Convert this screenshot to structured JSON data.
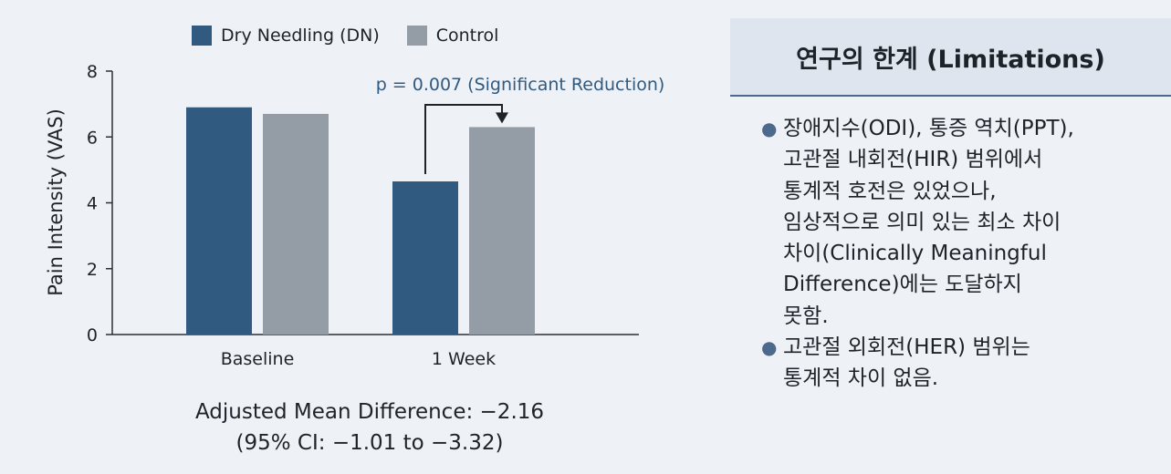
{
  "chart_data": {
    "type": "bar",
    "categories": [
      "Baseline",
      "1 Week"
    ],
    "series": [
      {
        "name": "Dry Needling (DN)",
        "color": "#315a80",
        "values": [
          6.9,
          4.65
        ]
      },
      {
        "name": "Control",
        "color": "#949ca6",
        "values": [
          6.7,
          6.3
        ]
      }
    ],
    "ylabel": "Pain Intensity (VAS)",
    "xlabel": "",
    "ylim": [
      0,
      8
    ],
    "yticks": [
      0,
      2,
      4,
      6,
      8
    ],
    "grid": false,
    "legend_position": "top",
    "annotation": "p = 0.007 (Significant Reduction)",
    "annotation_color": "#315a80"
  },
  "footnote": {
    "line1": "Adjusted Mean Difference: −2.16",
    "line2": "(95% CI: −1.01 to −3.32)"
  },
  "limitations": {
    "title": "연구의 한계 (Limitations)",
    "items": [
      {
        "lines": [
          "장애지수(ODI), 통증 역치(PPT),",
          "고관절 내회전(HIR) 범위에서",
          "통계적 호전은 있었으나,",
          "임상적으로 의미 있는 최소 차이",
          "차이(Clinically Meaningful",
          "Difference)에는 도달하지",
          "못함."
        ]
      },
      {
        "lines": [
          "고관절 외회전(HER) 범위는",
          "통계적 차이 없음."
        ]
      }
    ]
  }
}
